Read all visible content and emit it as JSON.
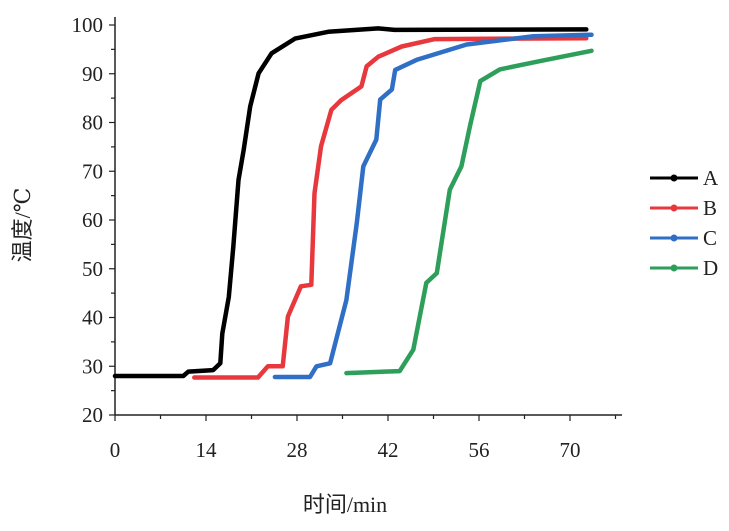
{
  "chart_data": {
    "type": "line",
    "title": "",
    "xlabel": "时间/min",
    "ylabel": "温度/℃",
    "xlim": [
      0,
      78
    ],
    "ylim": [
      20,
      100
    ],
    "xticks": [
      0,
      14,
      28,
      42,
      56,
      70
    ],
    "yticks": [
      20,
      30,
      40,
      50,
      60,
      70,
      80,
      90,
      100
    ],
    "grid": false,
    "legend_position": "right",
    "series": [
      {
        "name": "A",
        "color": "#000000",
        "points": [
          [
            0,
            28
          ],
          [
            10.5,
            28
          ],
          [
            11.3,
            28.9
          ],
          [
            15.1,
            29.2
          ],
          [
            16.2,
            30.6
          ],
          [
            16.5,
            36.7
          ],
          [
            17.5,
            44.2
          ],
          [
            18.2,
            54.5
          ],
          [
            19,
            68.2
          ],
          [
            19.8,
            74.4
          ],
          [
            20.8,
            83.3
          ],
          [
            22.1,
            90.1
          ],
          [
            24.1,
            94.2
          ],
          [
            27.7,
            97.2
          ],
          [
            32.8,
            98.6
          ],
          [
            40.5,
            99.3
          ],
          [
            43,
            99
          ],
          [
            72.5,
            99.1
          ]
        ]
      },
      {
        "name": "B",
        "color": "#e8383d",
        "points": [
          [
            12.2,
            27.7
          ],
          [
            22,
            27.7
          ],
          [
            23.5,
            30
          ],
          [
            25.8,
            30
          ],
          [
            26.6,
            40.2
          ],
          [
            28.6,
            46.4
          ],
          [
            30.2,
            46.7
          ],
          [
            30.7,
            65.5
          ],
          [
            31.7,
            75.1
          ],
          [
            33.3,
            82.6
          ],
          [
            34.8,
            84.6
          ],
          [
            37.9,
            87.4
          ],
          [
            38.7,
            91.5
          ],
          [
            40.5,
            93.5
          ],
          [
            44.1,
            95.6
          ],
          [
            49.2,
            97.1
          ],
          [
            72.5,
            97.3
          ]
        ]
      },
      {
        "name": "C",
        "color": "#2f6fc6",
        "points": [
          [
            24.6,
            27.8
          ],
          [
            30,
            27.8
          ],
          [
            31,
            30
          ],
          [
            33.1,
            30.6
          ],
          [
            35.6,
            43.6
          ],
          [
            37.2,
            59.4
          ],
          [
            38.2,
            71
          ],
          [
            40.2,
            76.5
          ],
          [
            40.8,
            84.7
          ],
          [
            42.6,
            86.8
          ],
          [
            43.1,
            90.8
          ],
          [
            46.5,
            92.9
          ],
          [
            54.1,
            96
          ],
          [
            64.4,
            97.7
          ],
          [
            73.3,
            98
          ]
        ]
      },
      {
        "name": "D",
        "color": "#2e9e5b",
        "points": [
          [
            35.6,
            28.6
          ],
          [
            43.8,
            29
          ],
          [
            45.9,
            33.4
          ],
          [
            47.9,
            47.1
          ],
          [
            49.5,
            49.1
          ],
          [
            51.5,
            66.2
          ],
          [
            53.3,
            71
          ],
          [
            54.6,
            79.2
          ],
          [
            56.2,
            88.5
          ],
          [
            59.2,
            90.9
          ],
          [
            65.4,
            92.6
          ],
          [
            73.3,
            94.7
          ]
        ]
      }
    ]
  }
}
